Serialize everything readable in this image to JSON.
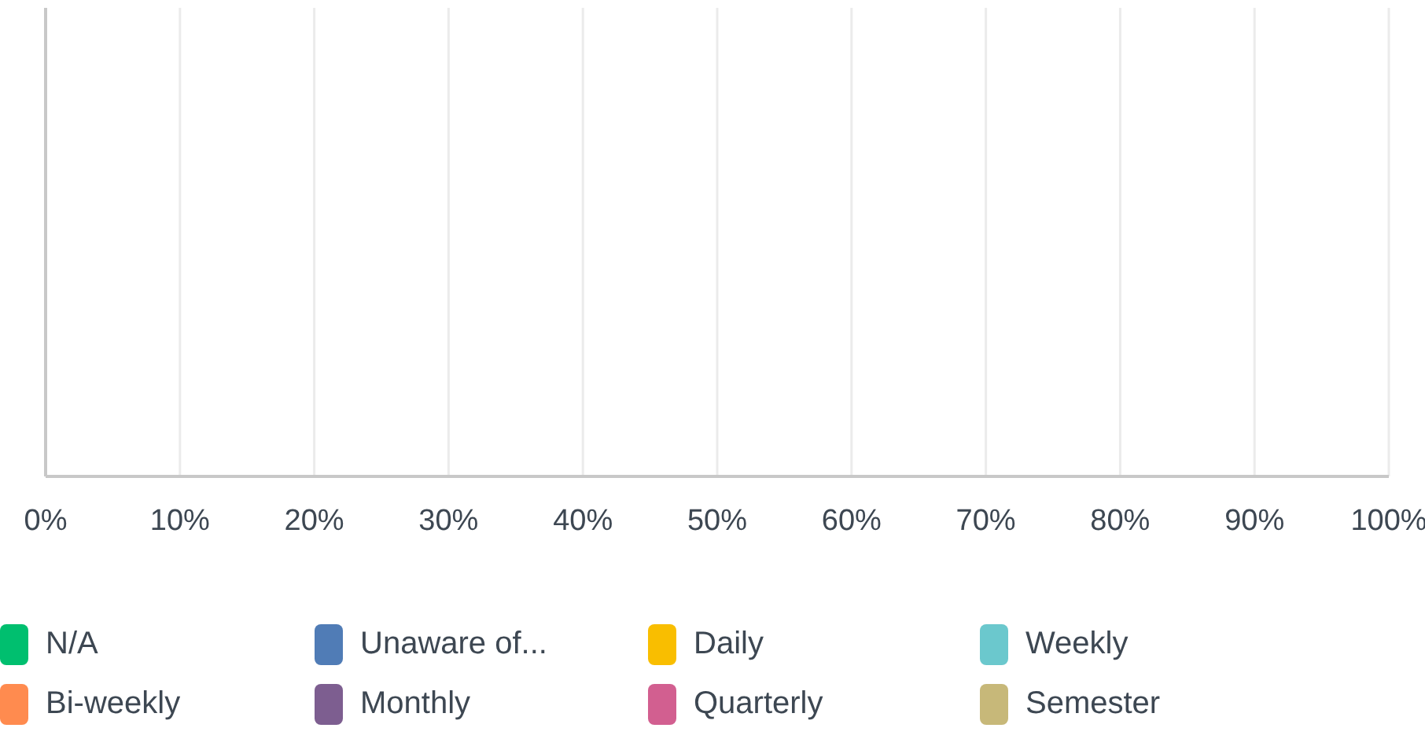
{
  "chart_data": {
    "type": "bar",
    "orientation": "horizontal",
    "series": [
      {
        "name": "N/A",
        "color": "#00bf6f"
      },
      {
        "name": "Unaware of...",
        "color": "#507cb6"
      },
      {
        "name": "Daily",
        "color": "#f9be00"
      },
      {
        "name": "Weekly",
        "color": "#6bc8cd"
      },
      {
        "name": "Bi-weekly",
        "color": "#ff8b4f"
      },
      {
        "name": "Monthly",
        "color": "#7d5e90"
      },
      {
        "name": "Quarterly",
        "color": "#d25f90"
      },
      {
        "name": "Semester",
        "color": "#c7b879"
      }
    ],
    "xlim": [
      0,
      100
    ],
    "xticks": [
      {
        "value": 0,
        "label": "0%"
      },
      {
        "value": 10,
        "label": "10%"
      },
      {
        "value": 20,
        "label": "20%"
      },
      {
        "value": 30,
        "label": "30%"
      },
      {
        "value": 40,
        "label": "40%"
      },
      {
        "value": 50,
        "label": "50%"
      },
      {
        "value": 60,
        "label": "60%"
      },
      {
        "value": 70,
        "label": "70%"
      },
      {
        "value": 80,
        "label": "80%"
      },
      {
        "value": 90,
        "label": "90%"
      },
      {
        "value": 100,
        "label": "100%"
      }
    ],
    "grid": "x",
    "legend": "bottom"
  }
}
